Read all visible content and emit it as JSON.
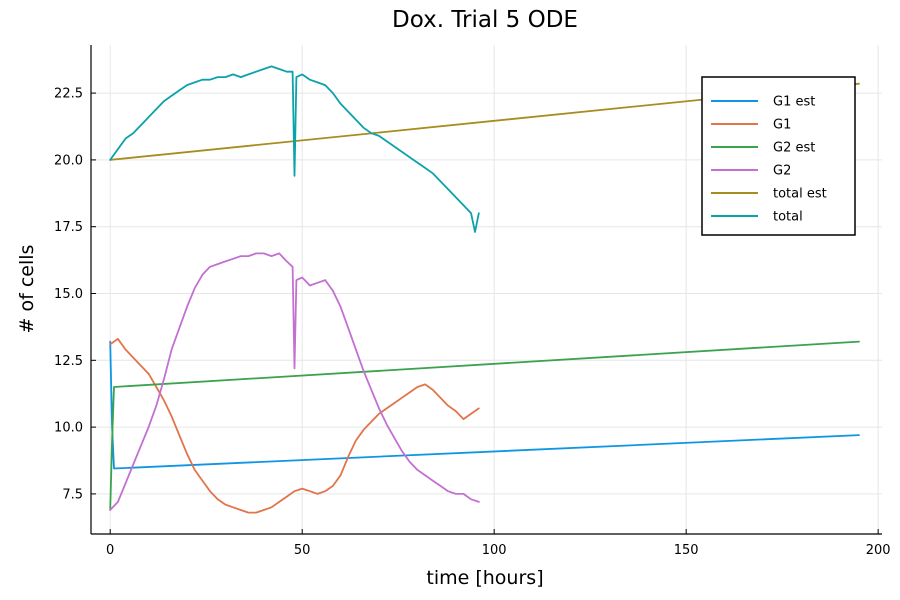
{
  "chart_data": {
    "type": "line",
    "title": "Dox. Trial 5 ODE",
    "xlabel": "time [hours]",
    "ylabel": "# of cells",
    "xlim": [
      -5,
      201
    ],
    "ylim": [
      6.0,
      24.3
    ],
    "xticks": [
      0,
      50,
      100,
      150,
      200
    ],
    "xtick_labels": [
      "0",
      "50",
      "100",
      "150",
      "200"
    ],
    "yticks": [
      7.5,
      10.0,
      12.5,
      15.0,
      17.5,
      20.0,
      22.5
    ],
    "ytick_labels": [
      "7.5",
      "10.0",
      "12.5",
      "15.0",
      "17.5",
      "20.0",
      "22.5"
    ],
    "grid": true,
    "legend_position": "top-right",
    "series": [
      {
        "name": "G1 est",
        "color": "#0e96e5",
        "x": [
          0,
          0.5,
          1,
          195
        ],
        "y": [
          13.2,
          10.0,
          8.45,
          9.7
        ]
      },
      {
        "name": "G1",
        "color": "#e2744b",
        "x": [
          0,
          2,
          4,
          6,
          8,
          10,
          12,
          14,
          16,
          18,
          20,
          22,
          24,
          26,
          28,
          30,
          32,
          34,
          36,
          38,
          40,
          42,
          44,
          46,
          48,
          50,
          52,
          54,
          56,
          58,
          60,
          62,
          64,
          66,
          68,
          70,
          72,
          74,
          76,
          78,
          80,
          82,
          84,
          86,
          88,
          90,
          92,
          94,
          96
        ],
        "y": [
          13.1,
          13.3,
          12.9,
          12.6,
          12.3,
          12.0,
          11.5,
          11.0,
          10.4,
          9.7,
          9.0,
          8.4,
          8.0,
          7.6,
          7.3,
          7.1,
          7.0,
          6.9,
          6.8,
          6.8,
          6.9,
          7.0,
          7.2,
          7.4,
          7.6,
          7.7,
          7.6,
          7.5,
          7.6,
          7.8,
          8.2,
          8.9,
          9.5,
          9.9,
          10.2,
          10.5,
          10.7,
          10.9,
          11.1,
          11.3,
          11.5,
          11.6,
          11.4,
          11.1,
          10.8,
          10.6,
          10.3,
          10.5,
          10.7
        ]
      },
      {
        "name": "G2 est",
        "color": "#3ba24d",
        "x": [
          0,
          0.5,
          1,
          195
        ],
        "y": [
          6.9,
          9.5,
          11.5,
          13.2
        ]
      },
      {
        "name": "G2",
        "color": "#c270d2",
        "x": [
          0,
          2,
          4,
          6,
          8,
          10,
          12,
          14,
          16,
          18,
          20,
          22,
          24,
          26,
          28,
          30,
          32,
          34,
          36,
          38,
          40,
          42,
          44,
          46,
          47.5,
          48,
          48.5,
          50,
          52,
          54,
          56,
          58,
          60,
          62,
          64,
          66,
          68,
          70,
          72,
          74,
          76,
          78,
          80,
          82,
          84,
          86,
          88,
          90,
          92,
          94,
          96
        ],
        "y": [
          6.9,
          7.2,
          7.9,
          8.6,
          9.3,
          10.0,
          10.8,
          11.8,
          12.9,
          13.7,
          14.5,
          15.2,
          15.7,
          16.0,
          16.1,
          16.2,
          16.3,
          16.4,
          16.4,
          16.5,
          16.5,
          16.4,
          16.5,
          16.2,
          16.0,
          12.2,
          15.5,
          15.6,
          15.3,
          15.4,
          15.5,
          15.1,
          14.5,
          13.7,
          12.9,
          12.1,
          11.4,
          10.7,
          10.1,
          9.6,
          9.1,
          8.7,
          8.4,
          8.2,
          8.0,
          7.8,
          7.6,
          7.5,
          7.5,
          7.3,
          7.2
        ]
      },
      {
        "name": "total est",
        "color": "#a78c1f",
        "x": [
          0,
          195
        ],
        "y": [
          20.0,
          22.85
        ]
      },
      {
        "name": "total",
        "color": "#0ba2a9",
        "x": [
          0,
          2,
          4,
          6,
          8,
          10,
          12,
          14,
          16,
          18,
          20,
          22,
          24,
          26,
          28,
          30,
          32,
          34,
          36,
          38,
          40,
          42,
          44,
          46,
          47.5,
          48,
          48.5,
          50,
          52,
          54,
          56,
          58,
          60,
          62,
          64,
          66,
          68,
          70,
          72,
          74,
          76,
          78,
          80,
          82,
          84,
          86,
          88,
          90,
          92,
          94,
          95,
          96
        ],
        "y": [
          20.0,
          20.4,
          20.8,
          21.0,
          21.3,
          21.6,
          21.9,
          22.2,
          22.4,
          22.6,
          22.8,
          22.9,
          23.0,
          23.0,
          23.1,
          23.1,
          23.2,
          23.1,
          23.2,
          23.3,
          23.4,
          23.5,
          23.4,
          23.3,
          23.3,
          19.4,
          23.1,
          23.2,
          23.0,
          22.9,
          22.8,
          22.5,
          22.1,
          21.8,
          21.5,
          21.2,
          21.0,
          20.9,
          20.7,
          20.5,
          20.3,
          20.1,
          19.9,
          19.7,
          19.5,
          19.2,
          18.9,
          18.6,
          18.3,
          18.0,
          17.3,
          18.0
        ]
      }
    ]
  }
}
